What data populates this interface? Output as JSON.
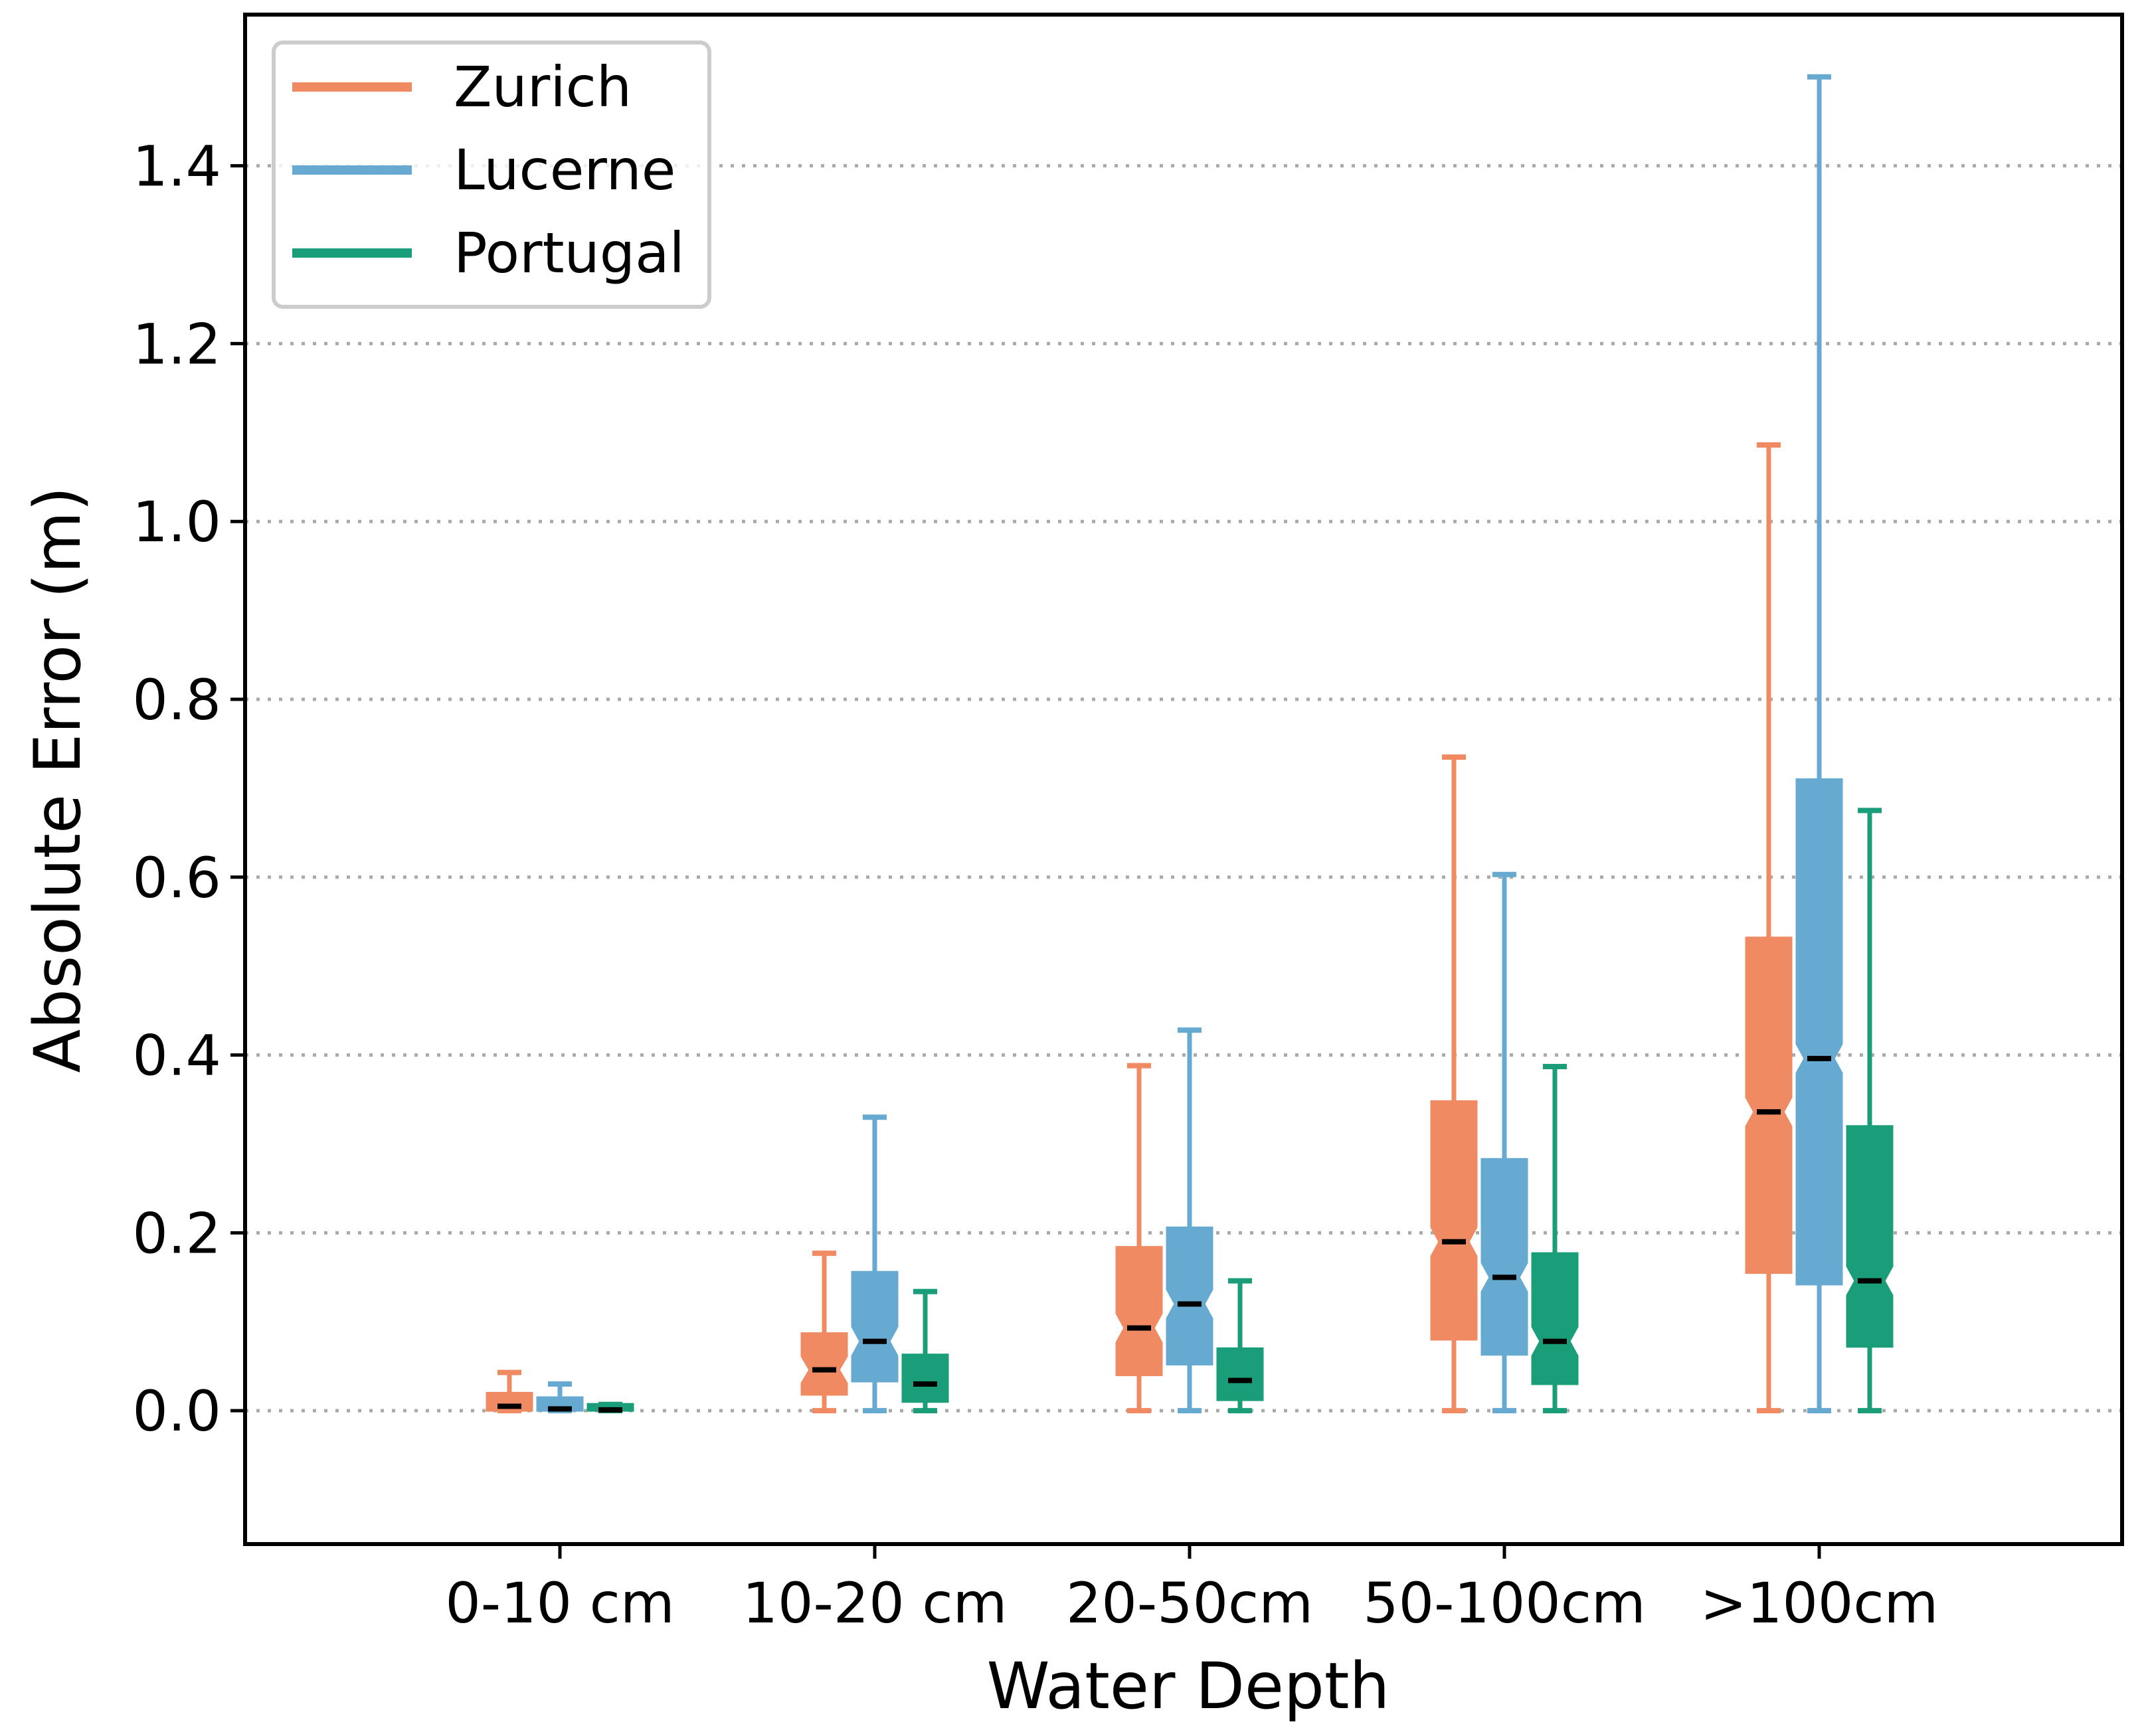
{
  "chart_data": {
    "type": "box",
    "xlabel": "Water Depth",
    "ylabel": "Absolute Error (m)",
    "title": "",
    "ylim": [
      -0.15,
      1.57
    ],
    "yticks": [
      0.0,
      0.2,
      0.4,
      0.6,
      0.8,
      1.0,
      1.2,
      1.4
    ],
    "ytick_labels": [
      "0.0",
      "0.2",
      "0.4",
      "0.6",
      "0.8",
      "1.0",
      "1.2",
      "1.4"
    ],
    "grid": "horizontal dotted",
    "legend_position": "top-left",
    "categories": [
      "0-10 cm",
      "10-20 cm",
      "20-50cm",
      "50-100cm",
      ">100cm"
    ],
    "series": [
      {
        "name": "Zurich",
        "color": "#f08a62",
        "boxes": [
          {
            "whislo": 0.0,
            "q1": 0.0,
            "med": 0.005,
            "q3": 0.02,
            "whishi": 0.043
          },
          {
            "whislo": 0.0,
            "q1": 0.018,
            "med": 0.046,
            "q3": 0.087,
            "whishi": 0.177
          },
          {
            "whislo": 0.0,
            "q1": 0.04,
            "med": 0.093,
            "q3": 0.184,
            "whishi": 0.388
          },
          {
            "whislo": 0.0,
            "q1": 0.08,
            "med": 0.19,
            "q3": 0.348,
            "whishi": 0.735
          },
          {
            "whislo": 0.0,
            "q1": 0.155,
            "med": 0.336,
            "q3": 0.532,
            "whishi": 1.086
          }
        ]
      },
      {
        "name": "Lucerne",
        "color": "#66a9d1",
        "boxes": [
          {
            "whislo": 0.0,
            "q1": 0.0,
            "med": 0.002,
            "q3": 0.015,
            "whishi": 0.03
          },
          {
            "whislo": 0.0,
            "q1": 0.033,
            "med": 0.078,
            "q3": 0.156,
            "whishi": 0.33
          },
          {
            "whislo": 0.0,
            "q1": 0.052,
            "med": 0.12,
            "q3": 0.206,
            "whishi": 0.428
          },
          {
            "whislo": 0.0,
            "q1": 0.063,
            "med": 0.15,
            "q3": 0.283,
            "whishi": 0.603
          },
          {
            "whislo": 0.0,
            "q1": 0.142,
            "med": 0.396,
            "q3": 0.71,
            "whishi": 1.5
          }
        ]
      },
      {
        "name": "Portugal",
        "color": "#1a9e7a",
        "boxes": [
          {
            "whislo": 0.0,
            "q1": 0.0,
            "med": 0.001,
            "q3": 0.004,
            "whishi": 0.007
          },
          {
            "whislo": 0.0,
            "q1": 0.01,
            "med": 0.03,
            "q3": 0.063,
            "whishi": 0.134
          },
          {
            "whislo": 0.0,
            "q1": 0.012,
            "med": 0.034,
            "q3": 0.07,
            "whishi": 0.146
          },
          {
            "whislo": 0.0,
            "q1": 0.03,
            "med": 0.078,
            "q3": 0.177,
            "whishi": 0.387
          },
          {
            "whislo": 0.0,
            "q1": 0.072,
            "med": 0.146,
            "q3": 0.32,
            "whishi": 0.675
          }
        ]
      }
    ]
  }
}
